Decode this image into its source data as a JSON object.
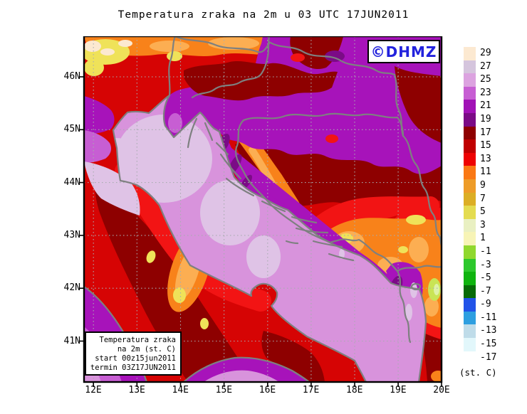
{
  "title": "Temperatura zraka na 2m u 03 UTC 17JUN2011",
  "watermark": {
    "text": "©DHMZ",
    "color": "#2222dd"
  },
  "info_box": {
    "lines": [
      "Temperatura zraka",
      "na 2m (st. C)",
      "start 00z15jun2011",
      "termin 03Z17JUN2011"
    ]
  },
  "axes": {
    "x_ticks": [
      "12E",
      "13E",
      "14E",
      "15E",
      "16E",
      "17E",
      "18E",
      "19E",
      "20E"
    ],
    "y_ticks": [
      "46N",
      "45N",
      "44N",
      "43N",
      "42N",
      "41N"
    ]
  },
  "colorbar": {
    "unit": "(st. C)",
    "entries": [
      {
        "label": "29",
        "color": "#FCE9D1"
      },
      {
        "label": "27",
        "color": "#D5C5DD"
      },
      {
        "label": "25",
        "color": "#DCA3E0"
      },
      {
        "label": "23",
        "color": "#C75ED3"
      },
      {
        "label": "21",
        "color": "#A112B6"
      },
      {
        "label": "19",
        "color": "#7B0B86"
      },
      {
        "label": "17",
        "color": "#8E0000"
      },
      {
        "label": "15",
        "color": "#C00000"
      },
      {
        "label": "13",
        "color": "#EE0202"
      },
      {
        "label": "11",
        "color": "#FA7814"
      },
      {
        "label": "9",
        "color": "#EE9C28"
      },
      {
        "label": "7",
        "color": "#DCAE24"
      },
      {
        "label": "5",
        "color": "#E4DC50"
      },
      {
        "label": "3",
        "color": "#E9F0C2"
      },
      {
        "label": "1",
        "color": "#F7F4B6"
      },
      {
        "label": "-1",
        "color": "#90D82E"
      },
      {
        "label": "-3",
        "color": "#2DC82D"
      },
      {
        "label": "-5",
        "color": "#0FB40F"
      },
      {
        "label": "-7",
        "color": "#076B07"
      },
      {
        "label": "-9",
        "color": "#2253E8"
      },
      {
        "label": "-11",
        "color": "#2E9FE0"
      },
      {
        "label": "-13",
        "color": "#BFDCE9"
      },
      {
        "label": "-15",
        "color": "#E2F7FB"
      },
      {
        "label": "-17",
        "color": "#FFFFFF"
      }
    ]
  },
  "map_colors": {
    "base": "#D60404",
    "redb": "#F21414",
    "mar": "#8E0000",
    "or": "#F8821A",
    "orl": "#FCAE52",
    "yel": "#EFE259",
    "cream": "#FCE9D1",
    "pur": "#A713BA",
    "orc": "#C75ED3",
    "dpur": "#7B0B86",
    "sea": "#D893DC",
    "seal": "#DFC3E6",
    "yg": "#C9E455",
    "pg": "#DFF2A8",
    "coast": "#7E8080",
    "grid": "#A8ACB0"
  }
}
